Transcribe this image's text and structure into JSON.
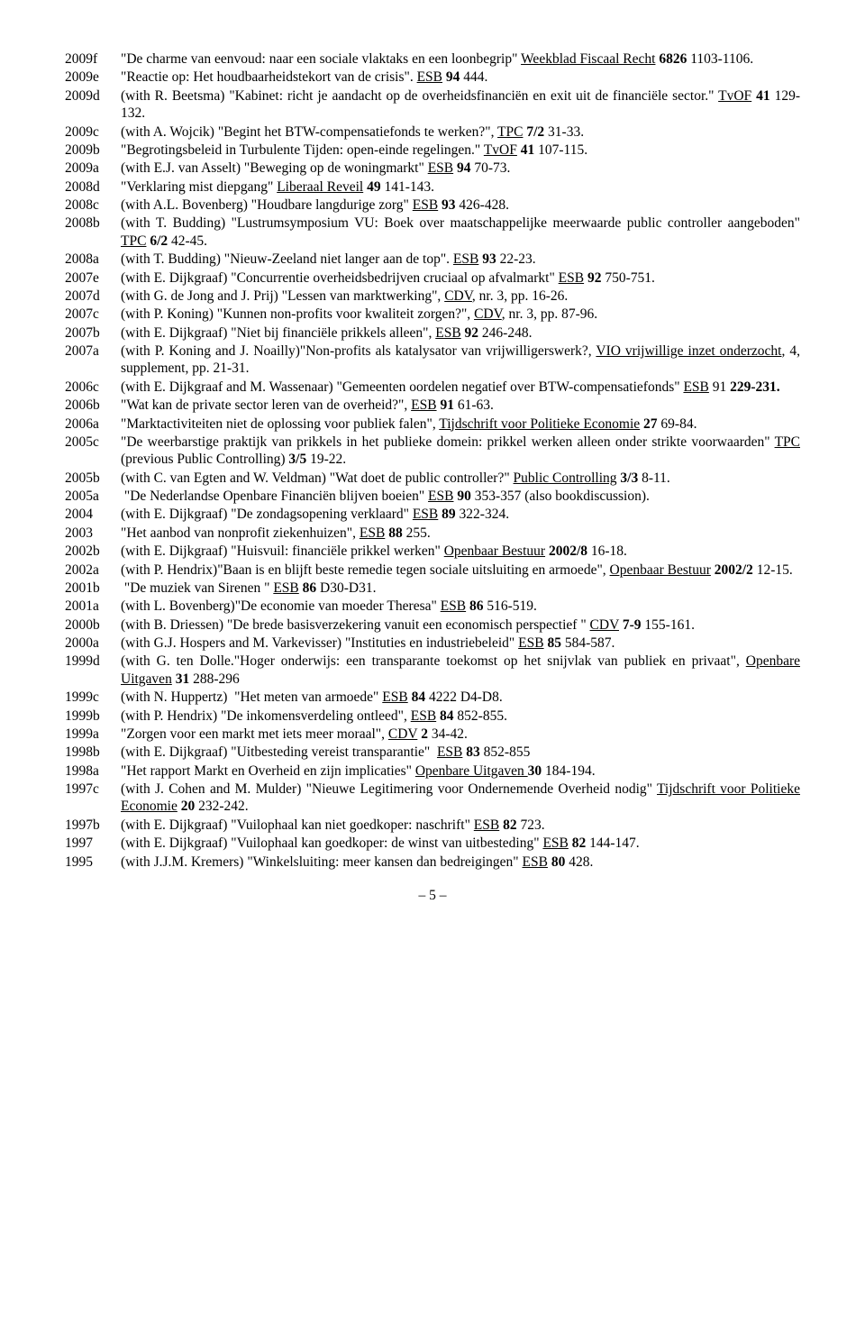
{
  "footer": "– 5 –",
  "entries": [
    {
      "year": "2009f",
      "html": "\"De charme van eenvoud: naar een sociale vlaktaks en een loonbegrip\" <span class='u'>Weekblad Fiscaal Recht</span> <b>6826</b> 1103-1106."
    },
    {
      "year": "2009e",
      "html": "\"Reactie op: Het houdbaarheidstekort van de crisis\". <span class='u'>ESB</span> <b>94</b> 444."
    },
    {
      "year": "2009d",
      "html": "(with R. Beetsma) \"Kabinet: richt je aandacht op de overheidsfinanciën en exit uit de financiële sector.\" <span class='u'>TvOF</span> <b>41</b> 129-132."
    },
    {
      "year": "2009c",
      "html": "(with A. Wojcik) \"Begint het BTW-compensatiefonds te werken?\", <span class='u'>TPC</span> <b>7/2</b> 31-33."
    },
    {
      "year": "2009b",
      "html": "\"Begrotingsbeleid in Turbulente Tijden: open-einde regelingen.\" <span class='u'>TvOF</span> <b>41</b> 107-115."
    },
    {
      "year": "2009a",
      "html": "(with E.J. van Asselt) \"Beweging op de woningmarkt\" <span class='u'>ESB</span> <b>94</b> 70-73."
    },
    {
      "year": "2008d",
      "html": "\"Verklaring mist diepgang\" <span class='u'>Liberaal Reveil</span> <b>49</b> 141-143."
    },
    {
      "year": "2008c",
      "html": "(with A.L. Bovenberg) \"Houdbare langdurige zorg\" <span class='u'>ESB</span> <b>93</b> 426-428."
    },
    {
      "year": "2008b",
      "html": "(with T. Budding) \"Lustrumsymposium VU: Boek over maatschappelijke meerwaarde public controller aangeboden\" <span class='u'>TPC</span> <b>6/2</b> 42-45."
    },
    {
      "year": "2008a",
      "html": "(with T. Budding) \"Nieuw-Zeeland niet langer aan de top\". <span class='u'>ESB</span> <b>93</b> 22-23."
    },
    {
      "year": "2007e",
      "html": "(with E. Dijkgraaf) \"Concurrentie overheidsbedrijven cruciaal op afvalmarkt\" <span class='u'>ESB</span> <b>92</b> 750-751."
    },
    {
      "year": "2007d",
      "html": "(with G. de Jong and J. Prij) \"Lessen van marktwerking\", <span class='u'>CDV</span>, nr. 3, pp. 16-26."
    },
    {
      "year": "2007c",
      "html": "(with P. Koning) \"Kunnen non-profits voor kwaliteit zorgen?\", <span class='u'>CDV</span>, nr. 3, pp. 87-96."
    },
    {
      "year": "2007b",
      "html": "(with E. Dijkgraaf) \"Niet bij financiële prikkels alleen\", <span class='u'>ESB</span> <b>92</b> 246-248."
    },
    {
      "year": "2007a",
      "html": "(with P. Koning and J. Noailly)\"Non-profits als katalysator van vrijwilligerswerk?, <span class='u'>VIO vrijwillige inzet onderzocht</span>, 4, supplement, pp. 21-31."
    },
    {
      "year": "2006c",
      "html": "(with E. Dijkgraaf and M. Wassenaar) \"Gemeenten oordelen negatief over BTW-compensatiefonds\" <span class='u'>ESB</span> 91 <b>229-231.</b>"
    },
    {
      "year": "2006b",
      "html": "\"Wat kan de private sector leren van de overheid?\", <span class='u'>ESB</span> <b>91</b> 61-63."
    },
    {
      "year": "2006a",
      "html": "\"Marktactiviteiten niet de oplossing voor publiek falen\", <span class='u'>Tijdschrift voor Politieke Economie</span> <b>27</b> 69-84."
    },
    {
      "year": "2005c",
      "html": "\"De weerbarstige praktijk van prikkels in het publieke domein: prikkel werken alleen onder strikte voorwaarden\" <span class='u'>TPC</span> (previous Public Controlling) <b>3/5</b> 19-22."
    },
    {
      "year": "2005b",
      "html": "(with C. van Egten and W. Veldman) \"Wat doet de public controller?\" <span class='u'>Public Controlling</span> <b>3/3</b> 8-11."
    },
    {
      "year": "2005a",
      "html": "&nbsp;\"De Nederlandse Openbare Financiën blijven boeien\" <span class='u'>ESB</span> <b>90</b> 353-357 (also bookdiscussion)."
    },
    {
      "year": "2004",
      "html": "(with E. Dijkgraaf) \"De zondagsopening verklaard\" <span class='u'>ESB</span> <b>89</b> 322-324."
    },
    {
      "year": "2003",
      "html": "\"Het aanbod van nonprofit ziekenhuizen\", <span class='u'>ESB</span> <b>88</b> 255."
    },
    {
      "year": "2002b",
      "html": "(with E. Dijkgraaf) \"Huisvuil: financiële prikkel werken\" <span class='u'>Openbaar Bestuur</span> <b>2002/8</b> 16-18."
    },
    {
      "year": "2002a",
      "html": "(with P. Hendrix)\"Baan is en blijft beste remedie tegen sociale uitsluiting en armoede\", <span class='u'>Openbaar Bestuur</span> <b>2002/2</b> 12-15."
    },
    {
      "year": "2001b",
      "html": "&nbsp;\"De muziek van Sirenen \" <span class='u'>ESB</span> <b>86</b> D30-D31."
    },
    {
      "year": "2001a",
      "html": "(with L. Bovenberg)\"De economie van moeder Theresa\" <span class='u'>ESB</span> <b>86</b> 516-519."
    },
    {
      "year": "2000b",
      "html": "(with B. Driessen) \"De brede basisverzekering vanuit een economisch perspectief \" <span class='u'>CDV</span> <b>7-9</b> 155-161."
    },
    {
      "year": "2000a",
      "html": "(with G.J. Hospers and M. Varkevisser) \"Instituties en industriebeleid\" <span class='u'>ESB</span> <b>85</b> 584-587."
    },
    {
      "year": "1999d",
      "html": "(with G. ten Dolle.\"Hoger onderwijs: een transparante toekomst op het snijvlak van publiek en privaat\", <span class='u'>Openbare Uitgaven</span> <b>31</b> 288-296"
    },
    {
      "year": "1999c",
      "html": "(with N. Huppertz) &nbsp;\"Het meten van armoede\" <span class='u'>ESB</span> <b>84</b> 4222 D4-D8."
    },
    {
      "year": "1999b",
      "html": "(with P. Hendrix) \"De inkomensverdeling ontleed\", <span class='u'>ESB</span> <b>84</b> 852-855."
    },
    {
      "year": "1999a",
      "html": "\"Zorgen voor een markt met iets meer moraal\", <span class='u'>CDV</span> <b>2</b> 34-42."
    },
    {
      "year": "1998b",
      "html": "(with E. Dijkgraaf) \"Uitbesteding vereist transparantie\" &nbsp;<span class='u'>ESB</span> <b>83</b> 852-855"
    },
    {
      "year": "1998a",
      "html": "\"Het rapport Markt en Overheid en zijn implicaties\" <span class='u'>Openbare Uitgaven </span><b>30</b> 184-194."
    },
    {
      "year": "1997c",
      "html": "(with J. Cohen and M. Mulder) \"Nieuwe Legitimering voor Ondernemende Overheid nodig\" <span class='u'>Tijdschrift voor Politieke Economie</span> <b>20</b> 232-242."
    },
    {
      "year": "1997b",
      "html": "(with E. Dijkgraaf) \"Vuilophaal kan niet goedkoper: naschrift\" <span class='u'>ESB</span> <b>82</b> 723."
    },
    {
      "year": "1997",
      "html": "(with E. Dijkgraaf) \"Vuilophaal kan goedkoper: de winst van uitbesteding\" <span class='u'>ESB</span> <b>82</b> 144-147."
    },
    {
      "year": "1995",
      "html": "(with J.J.M. Kremers) \"Winkelsluiting: meer kansen dan bedreigingen\" <span class='u'>ESB</span> <b>80</b> 428."
    }
  ]
}
